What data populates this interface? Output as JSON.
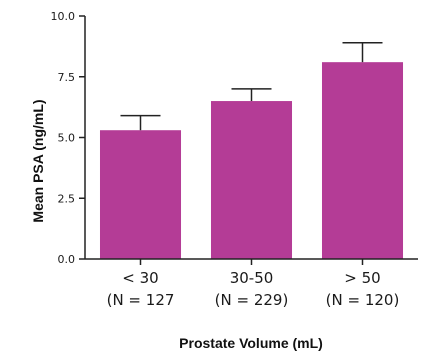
{
  "chart_data": {
    "type": "bar",
    "categories": [
      "< 30",
      "30-50",
      "> 50"
    ],
    "category_counts": [
      "(N = 127",
      "(N = 229)",
      "(N = 120)"
    ],
    "values": [
      5.3,
      6.5,
      8.1
    ],
    "error_upper": [
      5.9,
      7.0,
      8.9
    ],
    "xlabel": "Prostate Volume (mL)",
    "ylabel": "Mean PSA (ng/mL)",
    "ylim": [
      0,
      10
    ],
    "yticks": [
      "0.0",
      "2.5",
      "5.0",
      "7.5",
      "10.0"
    ],
    "ytick_values": [
      0,
      2.5,
      5,
      7.5,
      10
    ],
    "grid": false,
    "bar_color": "#b43c96"
  }
}
